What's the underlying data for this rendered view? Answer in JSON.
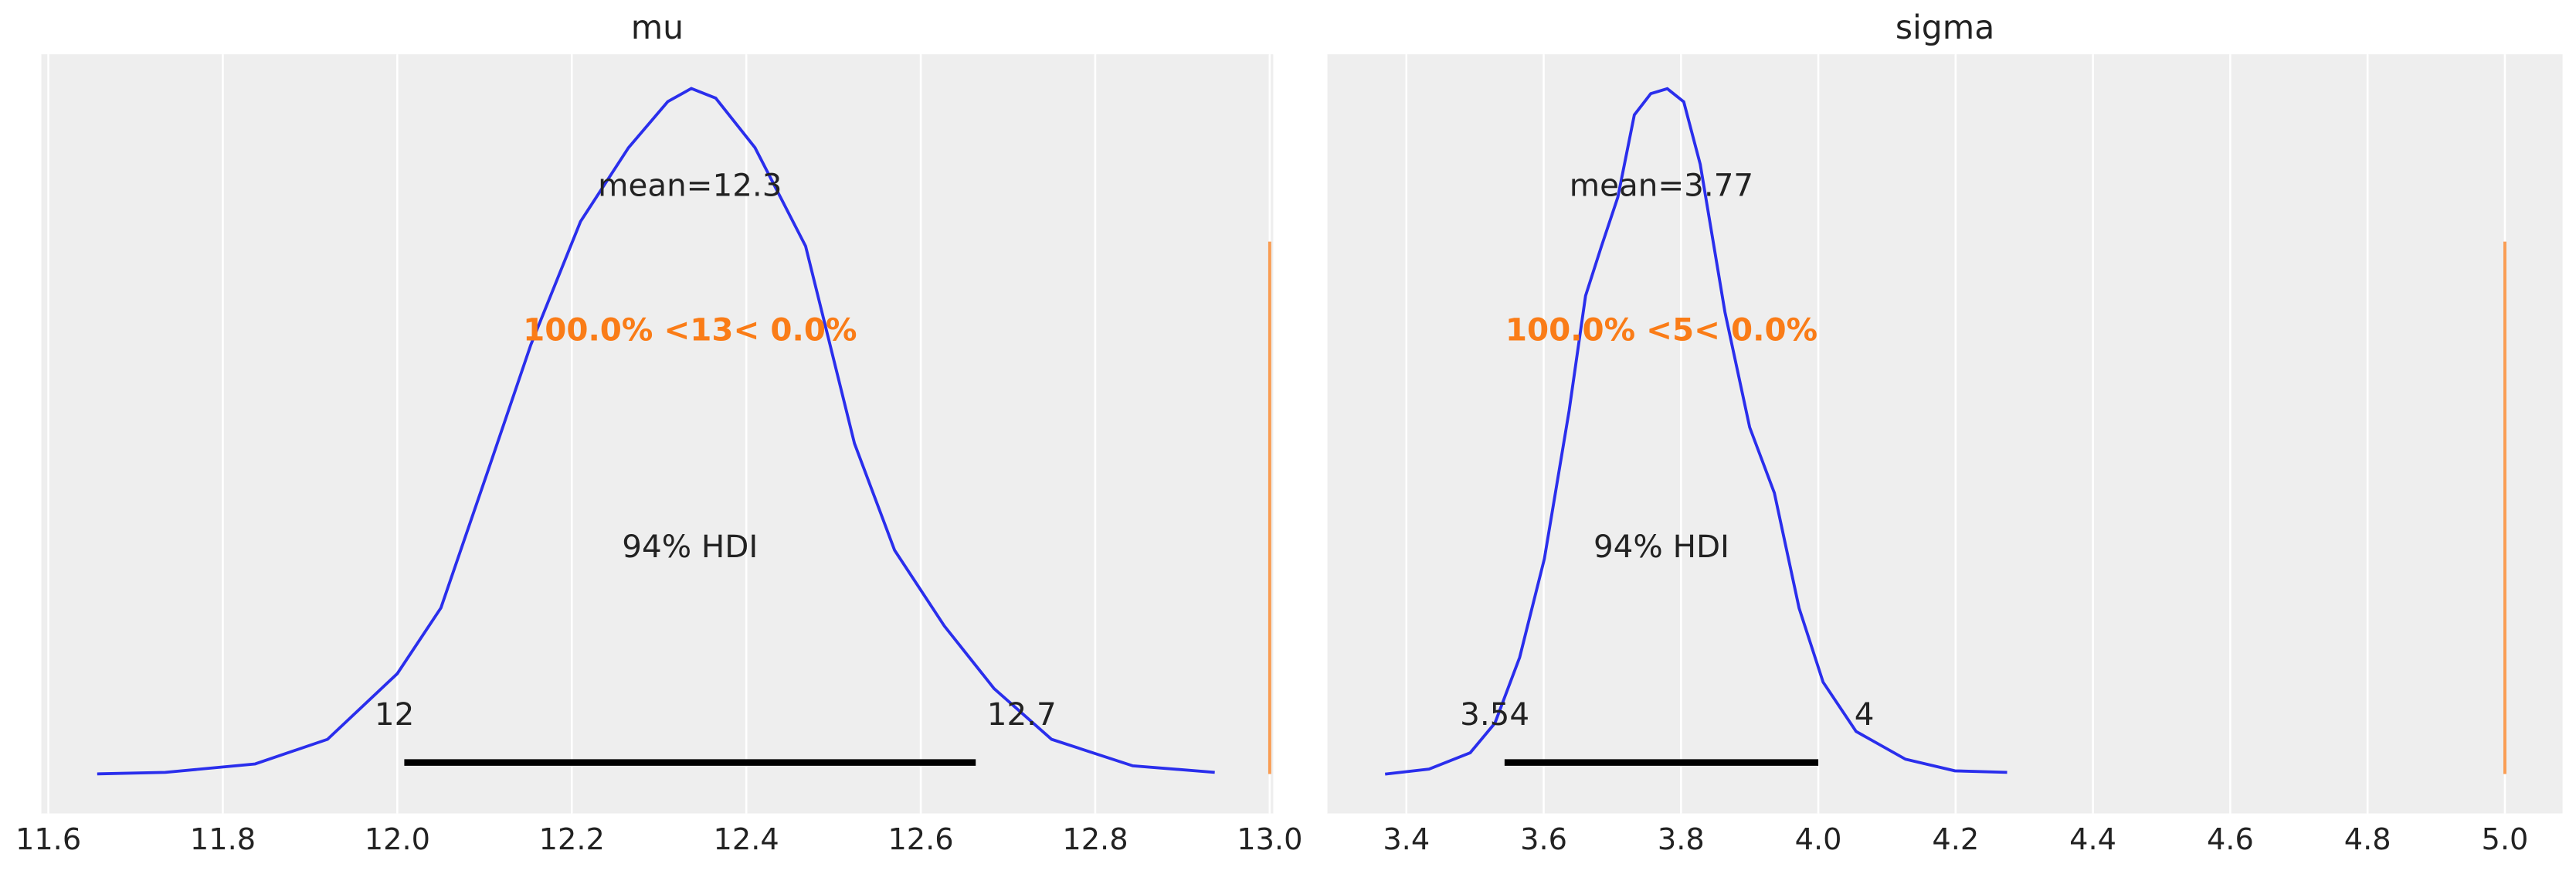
{
  "chart_data": [
    {
      "type": "density",
      "title": "mu",
      "color": "#2a2eec",
      "grid": true,
      "x": [
        11.656,
        11.734,
        11.837,
        11.92,
        12.0,
        12.05,
        12.105,
        12.153,
        12.21,
        12.265,
        12.31,
        12.337,
        12.365,
        12.41,
        12.468,
        12.524,
        12.57,
        12.627,
        12.684,
        12.75,
        12.843,
        12.937
      ],
      "values": [
        0,
        0.005,
        0.032,
        0.111,
        0.322,
        0.533,
        0.982,
        1.377,
        1.773,
        2.01,
        2.158,
        2.2,
        2.169,
        2.01,
        1.694,
        1.061,
        0.718,
        0.475,
        0.274,
        0.111,
        0.026,
        0.005
      ],
      "xlim": [
        11.592,
        13.004
      ],
      "ylim": [
        -0.127,
        2.31
      ],
      "xticks": [
        11.6,
        11.8,
        {
          "value": 12,
          "label": "12.0"
        },
        12.2,
        12.4,
        12.6,
        12.8,
        {
          "value": 13,
          "label": "13.0"
        }
      ],
      "mean_label": "mean=12.3",
      "ref_value": 13,
      "ref_color": "#fa7c17",
      "ref_label": "100.0% <13< 0.0%",
      "hdi_label": "94% HDI",
      "hdi": [
        12.008,
        12.663
      ],
      "hdi_labels": [
        "12",
        "12.7"
      ]
    },
    {
      "type": "density",
      "title": "sigma",
      "color": "#2a2eec",
      "grid": true,
      "x": [
        3.369,
        3.433,
        3.493,
        3.529,
        3.565,
        3.601,
        3.637,
        3.661,
        3.684,
        3.708,
        3.732,
        3.756,
        3.78,
        3.804,
        3.828,
        3.864,
        3.9,
        3.936,
        3.972,
        4.007,
        4.055,
        4.127,
        4.199,
        4.275
      ],
      "values": [
        0,
        0.026,
        0.112,
        0.268,
        0.613,
        1.131,
        1.908,
        2.513,
        2.772,
        3.031,
        3.463,
        3.575,
        3.601,
        3.532,
        3.204,
        2.427,
        1.822,
        1.477,
        0.872,
        0.483,
        0.224,
        0.078,
        0.017,
        0.009
      ],
      "xlim": [
        3.285,
        5.084
      ],
      "ylim": [
        -0.207,
        3.782
      ],
      "xticks": [
        3.4,
        3.6,
        3.8,
        {
          "value": 4,
          "label": "4.0"
        },
        4.2,
        4.4,
        4.6,
        4.8,
        {
          "value": 5,
          "label": "5.0"
        }
      ],
      "mean_label": "mean=3.77",
      "ref_value": 5,
      "ref_color": "#fa7c17",
      "ref_label": "100.0% <5< 0.0%",
      "hdi_label": "94% HDI",
      "hdi": [
        3.543,
        4.0
      ],
      "hdi_labels": [
        "3.54",
        "4"
      ]
    }
  ]
}
